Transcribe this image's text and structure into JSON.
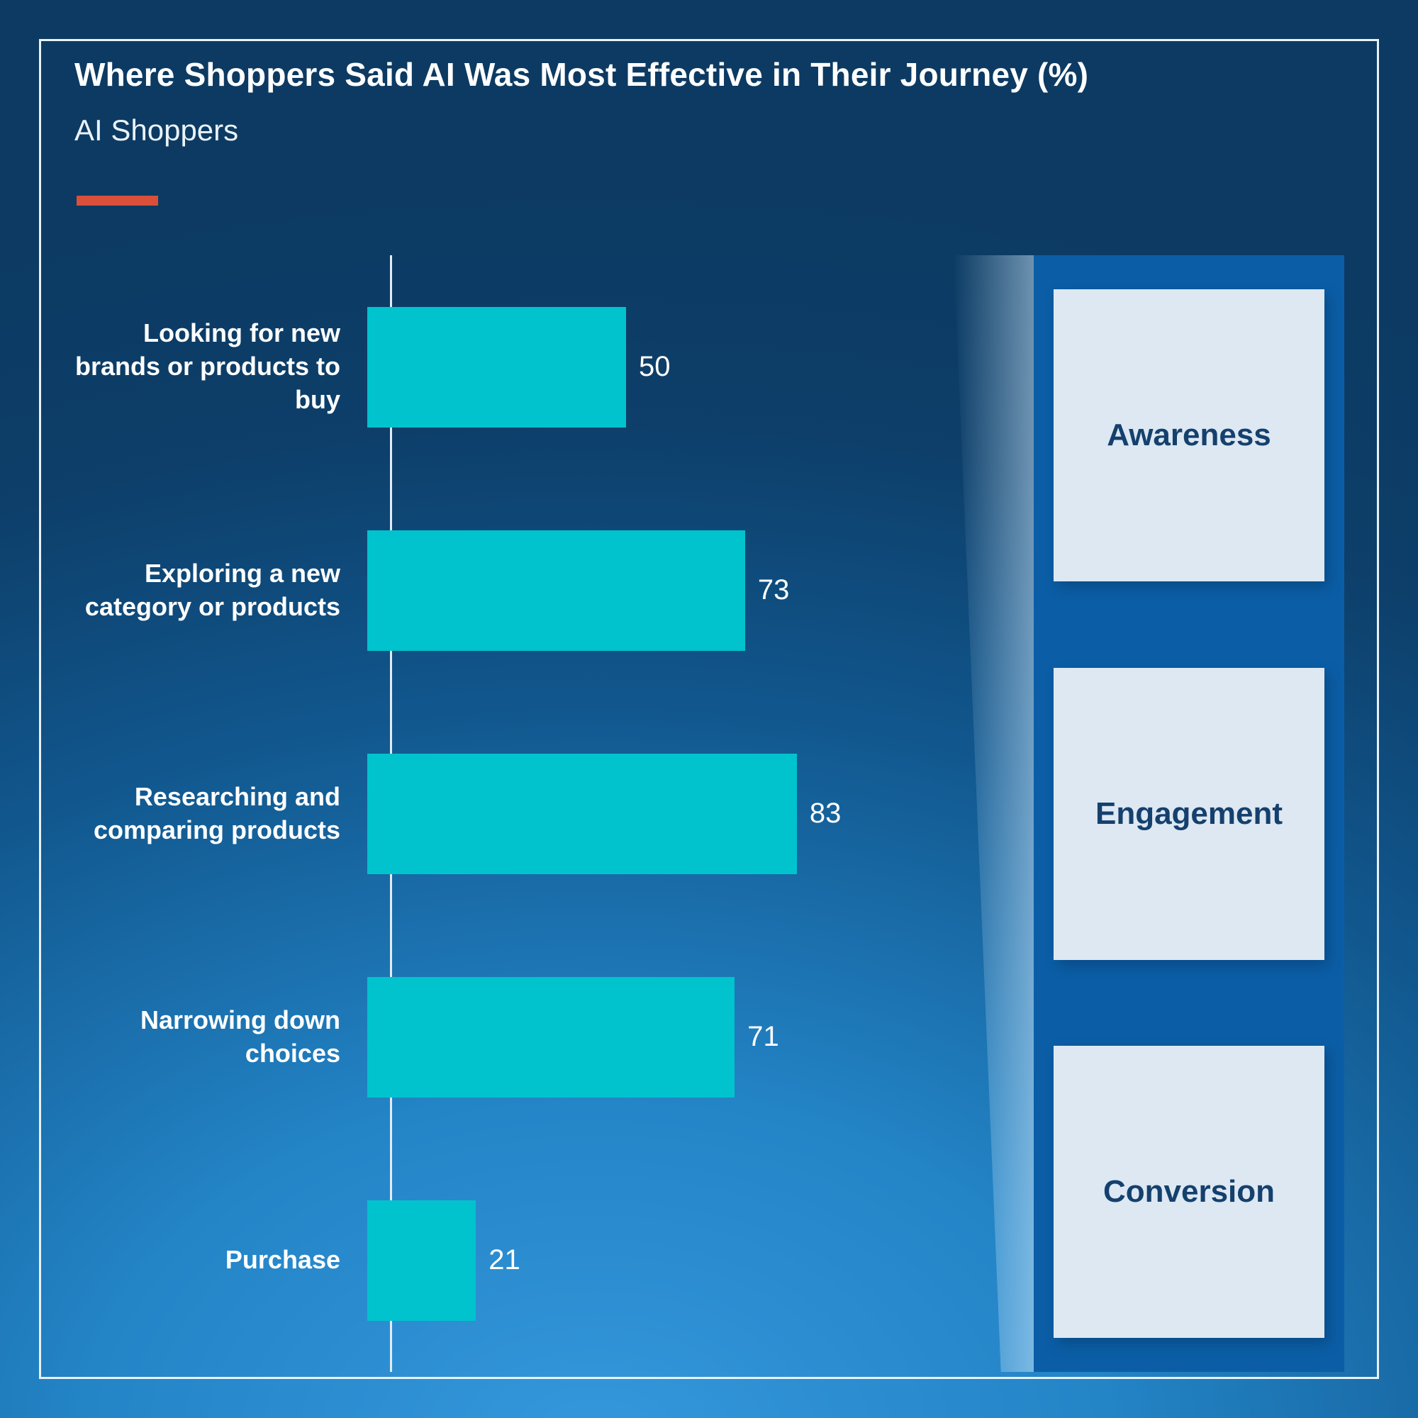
{
  "header": {
    "title": "Where Shoppers Said AI Was Most Effective in Their Journey (%)",
    "subtitle": "AI Shoppers"
  },
  "colors": {
    "accent": "#d94f3a",
    "bar": "#00c3ce",
    "panel": "#0b5ea6",
    "stage_box": "#dde8f2",
    "stage_text": "#15406e",
    "value_text": "#ffffff",
    "background_dark": "#0c3a62",
    "background_bright": "#3598dc"
  },
  "chart_data": {
    "type": "bar",
    "orientation": "horizontal",
    "title": "Where Shoppers Said AI Was Most Effective in Their Journey (%)",
    "xlabel": "",
    "ylabel": "",
    "xlim": [
      0,
      100
    ],
    "grid": false,
    "legend": false,
    "categories": [
      "Looking for new brands or products to buy",
      "Exploring a new category or products",
      "Researching and comparing products",
      "Narrowing down choices",
      "Purchase"
    ],
    "values": [
      50,
      73,
      83,
      71,
      21
    ]
  },
  "stages": [
    "Awareness",
    "Engagement",
    "Conversion"
  ]
}
